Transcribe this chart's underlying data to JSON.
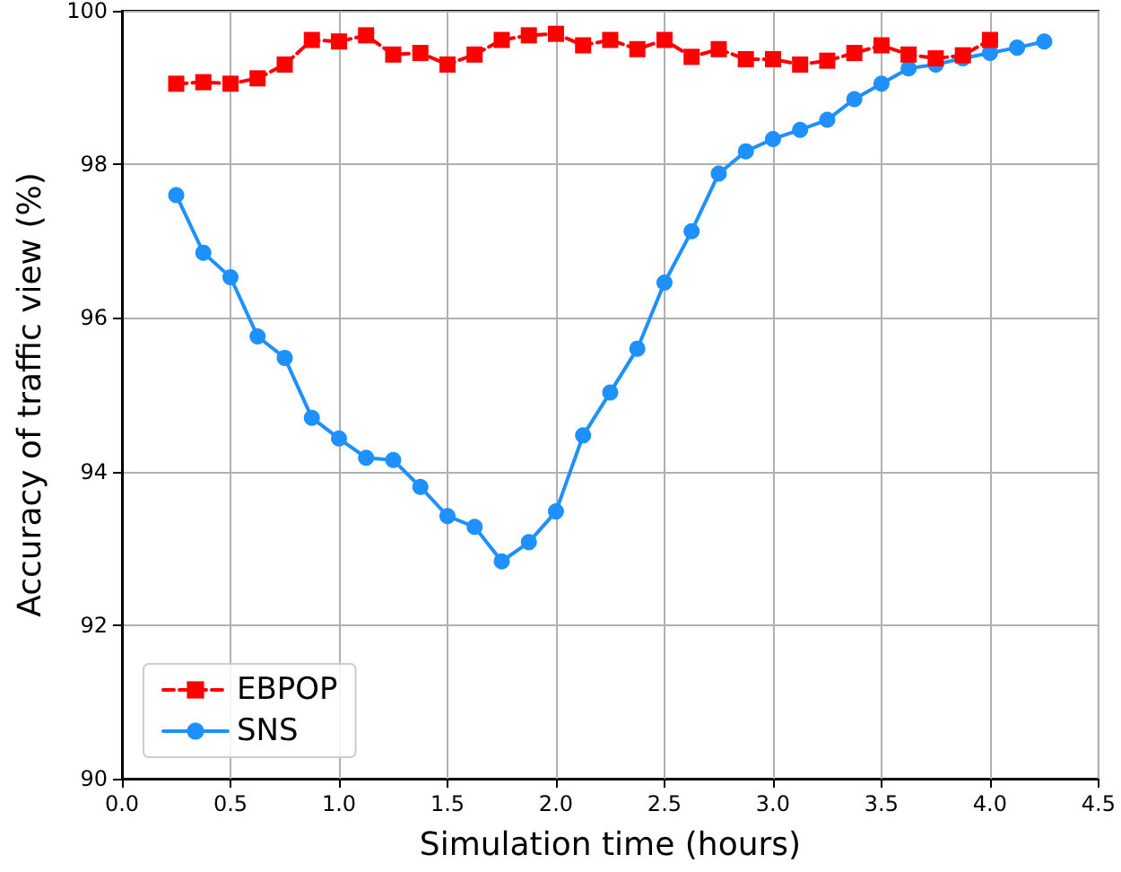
{
  "chart_data": {
    "type": "line",
    "xlabel": "Simulation time (hours)",
    "ylabel": "Accuracy of traffic view (%)",
    "xlim": [
      0,
      4.5
    ],
    "xticks": [
      {
        "value": 0,
        "label": "0.0"
      },
      0.5,
      {
        "value": 1,
        "label": "1.0"
      },
      1.5,
      {
        "value": 2,
        "label": "2.0"
      },
      2.5,
      {
        "value": 3,
        "label": "3.0"
      },
      3.5,
      {
        "value": 4,
        "label": "4.0"
      },
      4.5
    ],
    "ylim": [
      90,
      100
    ],
    "yticks": [
      90,
      92,
      94,
      96,
      98,
      100
    ],
    "grid": true,
    "legend": "bottom left",
    "series": [
      {
        "name": "EBPOP",
        "color": "#ff0000",
        "marker": "square",
        "line_style": "dashed",
        "x": [
          0.25,
          0.375,
          0.5,
          0.625,
          0.75,
          0.875,
          1.0,
          1.125,
          1.25,
          1.375,
          1.5,
          1.625,
          1.75,
          1.875,
          2.0,
          2.125,
          2.25,
          2.375,
          2.5,
          2.625,
          2.75,
          2.875,
          3.0,
          3.125,
          3.25,
          3.375,
          3.5,
          3.625,
          3.75,
          3.875,
          4.0
        ],
        "values": [
          99.05,
          99.07,
          99.05,
          99.12,
          99.3,
          99.62,
          99.6,
          99.68,
          99.43,
          99.45,
          99.3,
          99.43,
          99.62,
          99.68,
          99.7,
          99.55,
          99.62,
          99.5,
          99.62,
          99.4,
          99.5,
          99.37,
          99.37,
          99.3,
          99.35,
          99.45,
          99.55,
          99.43,
          99.38,
          99.42,
          99.62
        ]
      },
      {
        "name": "SNS",
        "color": "#1e90ff",
        "marker": "circle",
        "line_style": "solid",
        "x": [
          0.25,
          0.375,
          0.5,
          0.625,
          0.75,
          0.875,
          1.0,
          1.125,
          1.25,
          1.375,
          1.5,
          1.625,
          1.75,
          1.875,
          2.0,
          2.125,
          2.25,
          2.375,
          2.5,
          2.625,
          2.75,
          2.875,
          3.0,
          3.125,
          3.25,
          3.375,
          3.5,
          3.625,
          3.75,
          3.875,
          4.0,
          4.125,
          4.25
        ],
        "values": [
          97.6,
          96.85,
          96.53,
          95.76,
          95.48,
          94.7,
          94.43,
          94.18,
          94.15,
          93.8,
          93.42,
          93.28,
          92.83,
          93.08,
          93.48,
          94.47,
          95.03,
          95.6,
          96.46,
          97.13,
          97.88,
          98.17,
          98.33,
          98.45,
          98.58,
          98.85,
          99.05,
          99.25,
          99.3,
          99.38,
          99.45,
          99.52,
          99.6
        ]
      }
    ]
  }
}
